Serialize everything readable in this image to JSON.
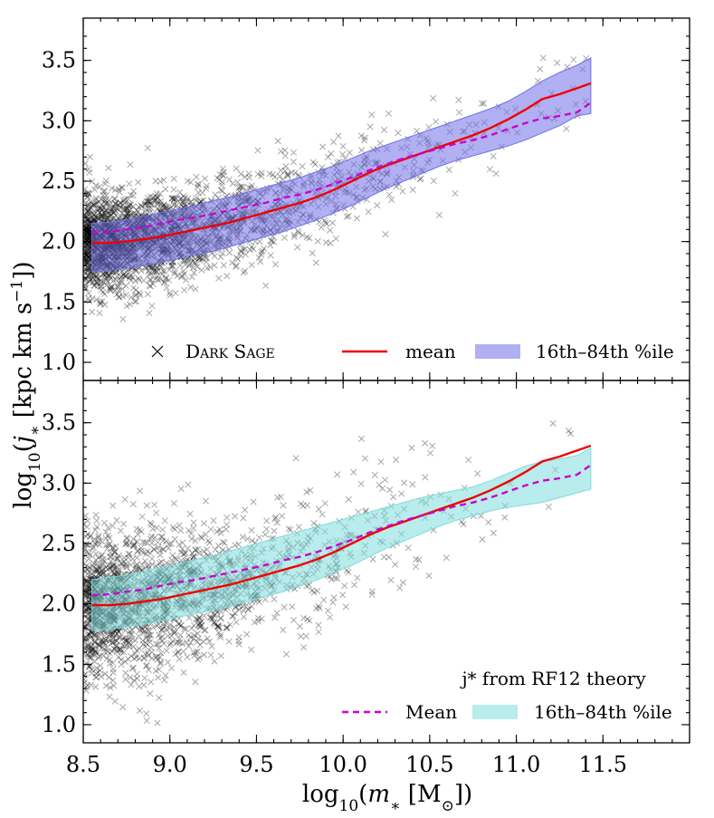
{
  "figure": {
    "xlabel": "log10(m* [M⊙])",
    "ylabel": "log10(j* [kpc km s−1])"
  },
  "chart_data": [
    {
      "type": "scatter",
      "panel": "top",
      "xlim": [
        8.5,
        12.0
      ],
      "ylim": [
        0.85,
        3.85
      ],
      "xticks": [
        "8.5",
        "9.0",
        "9.5",
        "10.0",
        "10.5",
        "11.0",
        "11.5"
      ],
      "yticks": [
        "1.0",
        "1.5",
        "2.0",
        "2.5",
        "3.0",
        "3.5"
      ],
      "ytick_values": [
        1.0,
        1.5,
        2.0,
        2.5,
        3.0,
        3.5
      ],
      "xtick_values": [
        8.5,
        9.0,
        9.5,
        10.0,
        10.5,
        11.0,
        11.5
      ],
      "colors": {
        "mean": "#ee0000",
        "band": "#7070e8",
        "secondary": "#cc00cc",
        "scatter": "#000000"
      },
      "legend": {
        "placement": "bottom-right",
        "scatter_label": "Dark Sage",
        "mean_label": "mean",
        "band_label": "16th–84th %ile"
      },
      "x": [
        8.55,
        8.65,
        8.75,
        8.85,
        8.95,
        9.05,
        9.15,
        9.25,
        9.35,
        9.45,
        9.55,
        9.65,
        9.75,
        9.85,
        9.95,
        10.05,
        10.15,
        10.25,
        10.35,
        10.45,
        10.55,
        10.65,
        10.75,
        10.85,
        10.95,
        11.05,
        11.15,
        11.25,
        11.35,
        11.43
      ],
      "series": [
        {
          "name": "mean",
          "style": "solid",
          "y": [
            1.99,
            1.99,
            2.0,
            2.02,
            2.04,
            2.07,
            2.1,
            2.13,
            2.16,
            2.2,
            2.24,
            2.28,
            2.32,
            2.37,
            2.43,
            2.5,
            2.57,
            2.63,
            2.68,
            2.73,
            2.78,
            2.83,
            2.88,
            2.94,
            3.01,
            3.09,
            3.18,
            3.22,
            3.27,
            3.31
          ]
        },
        {
          "name": "",
          "style": "dashed",
          "y": [
            2.07,
            2.08,
            2.1,
            2.12,
            2.15,
            2.18,
            2.2,
            2.23,
            2.26,
            2.29,
            2.32,
            2.36,
            2.39,
            2.43,
            2.48,
            2.53,
            2.59,
            2.64,
            2.69,
            2.73,
            2.77,
            2.81,
            2.84,
            2.88,
            2.93,
            2.98,
            3.02,
            3.04,
            3.07,
            3.15
          ]
        }
      ],
      "band": {
        "lower": [
          1.75,
          1.76,
          1.78,
          1.8,
          1.83,
          1.86,
          1.89,
          1.92,
          1.96,
          2.0,
          2.04,
          2.08,
          2.13,
          2.18,
          2.24,
          2.3,
          2.37,
          2.44,
          2.5,
          2.56,
          2.62,
          2.67,
          2.71,
          2.75,
          2.79,
          2.84,
          2.9,
          2.96,
          3.04,
          3.06
        ],
        "upper": [
          2.15,
          2.16,
          2.18,
          2.21,
          2.24,
          2.27,
          2.3,
          2.34,
          2.37,
          2.41,
          2.45,
          2.49,
          2.53,
          2.58,
          2.63,
          2.69,
          2.75,
          2.8,
          2.85,
          2.9,
          2.95,
          3.0,
          3.05,
          3.1,
          3.16,
          3.24,
          3.33,
          3.4,
          3.46,
          3.52
        ]
      },
      "scatter": {
        "n_points": 2400,
        "approx_points_shown": "dense cloud following the mean relation, highest density at 8.5–9.5"
      }
    },
    {
      "type": "scatter",
      "panel": "bottom",
      "xlim": [
        8.5,
        12.0
      ],
      "ylim": [
        0.85,
        3.85
      ],
      "xticks": [
        "8.5",
        "9.0",
        "9.5",
        "10.0",
        "10.5",
        "11.0",
        "11.5"
      ],
      "yticks": [
        "1.0",
        "1.5",
        "2.0",
        "2.5",
        "3.0",
        "3.5"
      ],
      "ytick_values": [
        1.0,
        1.5,
        2.0,
        2.5,
        3.0,
        3.5
      ],
      "xtick_values": [
        8.5,
        9.0,
        9.5,
        10.0,
        10.5,
        11.0,
        11.5
      ],
      "colors": {
        "mean": "#ee0000",
        "band": "#7fdcdc",
        "secondary": "#cc00cc",
        "scatter": "#000000"
      },
      "legend": {
        "placement": "bottom-right",
        "title": "j* from RF12 theory",
        "mean_label": "Mean",
        "band_label": "16th–84th %ile"
      },
      "x": [
        8.55,
        8.65,
        8.75,
        8.85,
        8.95,
        9.05,
        9.15,
        9.25,
        9.35,
        9.45,
        9.55,
        9.65,
        9.75,
        9.85,
        9.95,
        10.05,
        10.15,
        10.25,
        10.35,
        10.45,
        10.55,
        10.65,
        10.75,
        10.85,
        10.95,
        11.05,
        11.15,
        11.25,
        11.35,
        11.43
      ],
      "series": [
        {
          "name": "",
          "style": "solid",
          "y": [
            1.99,
            1.99,
            2.0,
            2.02,
            2.04,
            2.07,
            2.1,
            2.13,
            2.16,
            2.2,
            2.24,
            2.28,
            2.32,
            2.37,
            2.43,
            2.5,
            2.57,
            2.63,
            2.68,
            2.73,
            2.78,
            2.83,
            2.88,
            2.94,
            3.01,
            3.09,
            3.18,
            3.22,
            3.27,
            3.31
          ]
        },
        {
          "name": "Mean",
          "style": "dashed",
          "y": [
            2.07,
            2.08,
            2.1,
            2.12,
            2.15,
            2.18,
            2.2,
            2.23,
            2.26,
            2.29,
            2.32,
            2.36,
            2.39,
            2.43,
            2.48,
            2.53,
            2.59,
            2.64,
            2.69,
            2.73,
            2.77,
            2.81,
            2.84,
            2.88,
            2.93,
            2.98,
            3.02,
            3.04,
            3.07,
            3.15
          ]
        }
      ],
      "band": {
        "lower": [
          1.78,
          1.79,
          1.81,
          1.83,
          1.86,
          1.89,
          1.92,
          1.95,
          1.98,
          2.02,
          2.06,
          2.1,
          2.15,
          2.2,
          2.26,
          2.32,
          2.39,
          2.46,
          2.52,
          2.58,
          2.64,
          2.69,
          2.73,
          2.77,
          2.8,
          2.82,
          2.84,
          2.88,
          2.92,
          2.95
        ],
        "upper": [
          2.2,
          2.22,
          2.24,
          2.27,
          2.3,
          2.33,
          2.37,
          2.4,
          2.44,
          2.48,
          2.52,
          2.56,
          2.6,
          2.64,
          2.68,
          2.72,
          2.76,
          2.8,
          2.84,
          2.88,
          2.91,
          2.94,
          2.97,
          3.02,
          3.08,
          3.14,
          3.18,
          3.2,
          3.23,
          3.29
        ]
      },
      "scatter": {
        "n_points": 1900,
        "approx_points_shown": "wider cloud than top panel, more points below 1.5 at low mass"
      }
    }
  ]
}
